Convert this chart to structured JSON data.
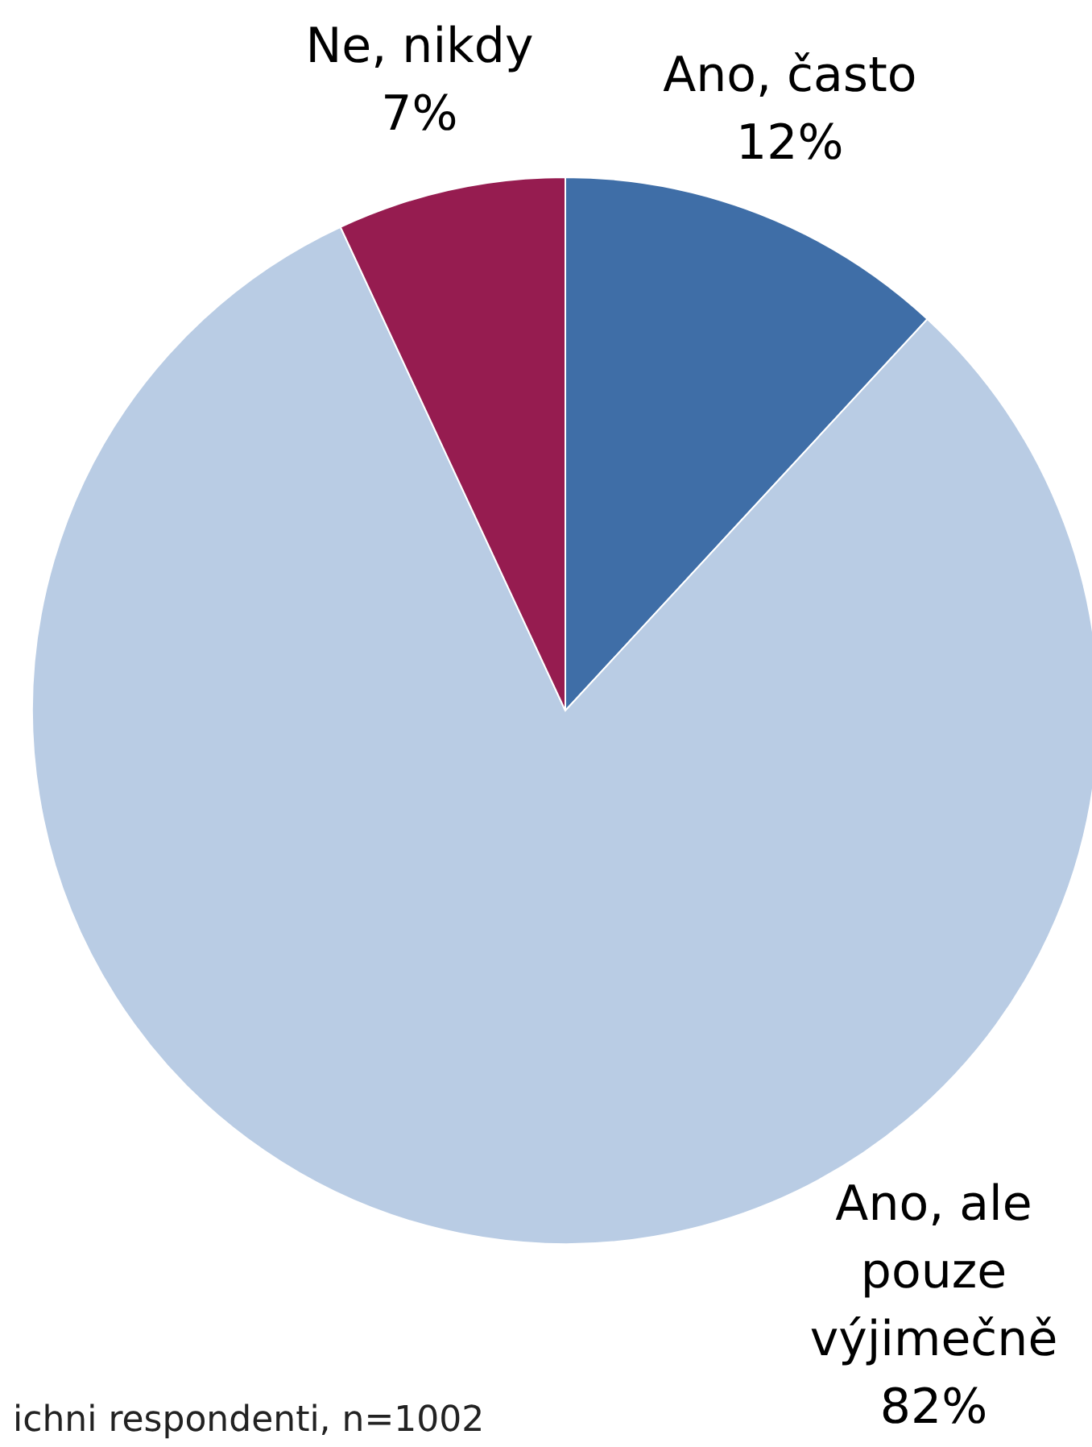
{
  "chart_data": {
    "type": "pie",
    "categories": [
      "Ano, často",
      "Ano, ale pouze výjimečně",
      "Ne, nikdy"
    ],
    "values": [
      12,
      82,
      7
    ],
    "colors": [
      "#3f6ea7",
      "#b9cce4",
      "#961c50"
    ],
    "value_labels": [
      "12%",
      "82%",
      "7%"
    ],
    "annotations": [
      "ichni respondenti, n=1002"
    ]
  }
}
